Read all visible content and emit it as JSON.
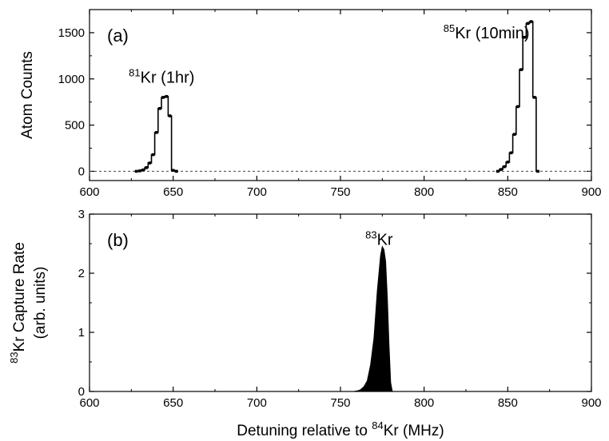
{
  "chart_data": [
    {
      "type": "line",
      "panel_label": "(a)",
      "ylabel": "Atom Counts",
      "xlim": [
        600,
        900
      ],
      "ylim": [
        -100,
        1750
      ],
      "xticks": [
        600,
        650,
        700,
        750,
        800,
        850,
        900
      ],
      "yticks": [
        0,
        500,
        1000,
        1500
      ],
      "baseline": 0,
      "series": [
        {
          "annotation_sup": "81",
          "annotation_text": "Kr (1hr)",
          "x": [
            628,
            630,
            632,
            634,
            636,
            638,
            640,
            642,
            644,
            646,
            648,
            650,
            652
          ],
          "y": [
            0,
            5,
            15,
            40,
            90,
            180,
            420,
            680,
            800,
            810,
            600,
            10,
            0
          ]
        },
        {
          "annotation_sup": "85",
          "annotation_text": "Kr (10min)",
          "x": [
            844,
            846,
            848,
            850,
            852,
            854,
            856,
            858,
            860,
            862,
            864,
            866,
            868
          ],
          "y": [
            0,
            20,
            50,
            100,
            200,
            400,
            700,
            1100,
            1450,
            1600,
            1620,
            800,
            0
          ]
        }
      ]
    },
    {
      "type": "area",
      "panel_label": "(b)",
      "ylabel_sup": "83",
      "ylabel_line1": "Kr Capture Rate",
      "ylabel_line2": "(arb. units)",
      "xlabel_pre": "Detuning relative to ",
      "xlabel_sup": "84",
      "xlabel_post": "Kr (MHz)",
      "xlim": [
        600,
        900
      ],
      "ylim": [
        0,
        3
      ],
      "xticks": [
        600,
        650,
        700,
        750,
        800,
        850,
        900
      ],
      "yticks": [
        0,
        1,
        2,
        3
      ],
      "series": [
        {
          "annotation_sup": "83",
          "annotation_text": "Kr",
          "x": [
            758,
            760,
            762,
            764,
            766,
            768,
            770,
            772,
            774,
            775,
            776,
            777,
            778,
            779,
            780,
            781
          ],
          "y": [
            0,
            0.01,
            0.03,
            0.08,
            0.18,
            0.45,
            0.9,
            1.7,
            2.3,
            2.45,
            2.4,
            2.2,
            1.6,
            0.8,
            0.15,
            0
          ]
        }
      ]
    }
  ]
}
